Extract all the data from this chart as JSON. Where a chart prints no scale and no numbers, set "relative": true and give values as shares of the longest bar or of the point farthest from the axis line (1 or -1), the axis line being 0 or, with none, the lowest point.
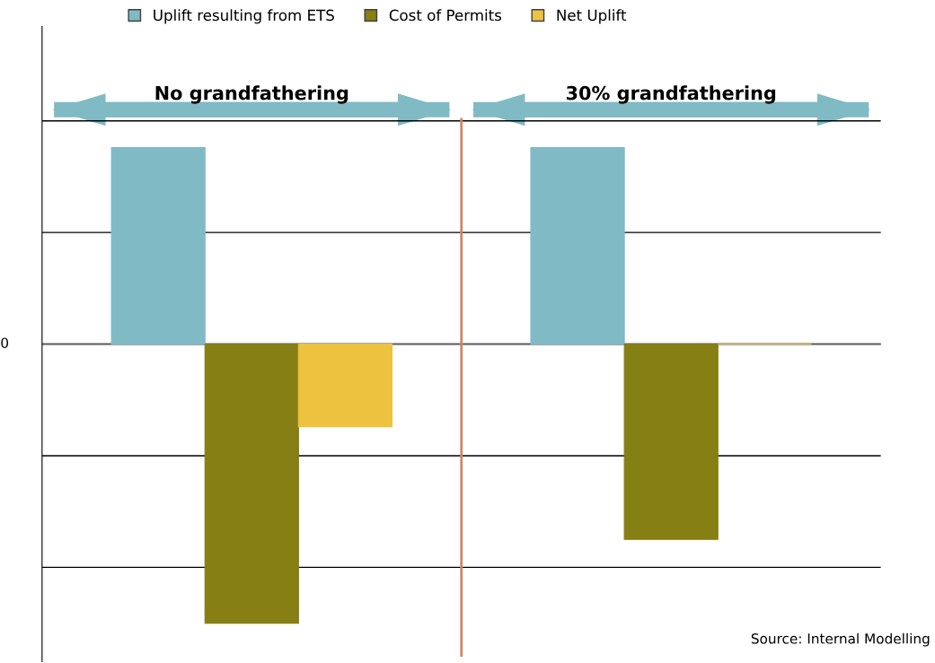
{
  "chart_data": {
    "type": "bar",
    "relative": true,
    "categories": [
      "No grandfathering",
      "30% grandfathering"
    ],
    "series": [
      {
        "name": "Uplift resulting from ETS",
        "color": "#80bac4",
        "values": [
          0.704,
          0.704
        ]
      },
      {
        "name": "Cost of Permits",
        "color": "#867f13",
        "values": [
          -1,
          -0.7
        ]
      },
      {
        "name": "Net Uplift",
        "color": "#ecc23f",
        "values": [
          -0.296,
          0.0
        ]
      }
    ],
    "grid": "y",
    "legend": "top",
    "annotations": [
      "0",
      "Source: Internal Modelling"
    ]
  }
}
